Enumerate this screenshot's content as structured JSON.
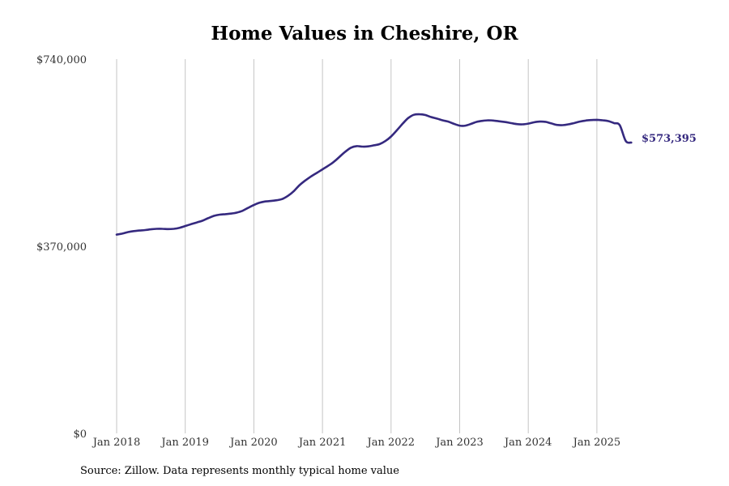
{
  "chart_data": {
    "type": "line",
    "title": "Home Values in Cheshire, OR",
    "xlabel": "",
    "ylabel": "",
    "ylim": [
      0,
      740000
    ],
    "yticks": [
      {
        "value": 0,
        "label": "$0"
      },
      {
        "value": 370000,
        "label": "$370,000"
      },
      {
        "value": 740000,
        "label": "$740,000"
      }
    ],
    "xticks": [
      {
        "value": 2018.0,
        "label": "Jan 2018"
      },
      {
        "value": 2019.0,
        "label": "Jan 2019"
      },
      {
        "value": 2020.0,
        "label": "Jan 2020"
      },
      {
        "value": 2021.0,
        "label": "Jan 2021"
      },
      {
        "value": 2022.0,
        "label": "Jan 2022"
      },
      {
        "value": 2023.0,
        "label": "Jan 2023"
      },
      {
        "value": 2024.0,
        "label": "Jan 2024"
      },
      {
        "value": 2025.0,
        "label": "Jan 2025"
      }
    ],
    "xlim": [
      2017.833,
      2025.917
    ],
    "grid": {
      "vertical": true,
      "horizontal": false
    },
    "line_color": "#35297f",
    "end_label": "$573,395",
    "series": [
      {
        "x": [
          2018.0,
          2018.083,
          2018.167,
          2018.25,
          2018.333,
          2018.417,
          2018.5,
          2018.583,
          2018.667,
          2018.75,
          2018.833,
          2018.917,
          2019.0,
          2019.083,
          2019.167,
          2019.25,
          2019.333,
          2019.417,
          2019.5,
          2019.583,
          2019.667,
          2019.75,
          2019.833,
          2019.917,
          2020.0,
          2020.083,
          2020.167,
          2020.25,
          2020.333,
          2020.417,
          2020.5,
          2020.583,
          2020.667,
          2020.75,
          2020.833,
          2020.917,
          2021.0,
          2021.083,
          2021.167,
          2021.25,
          2021.333,
          2021.417,
          2021.5,
          2021.583,
          2021.667,
          2021.75,
          2021.833,
          2021.917,
          2022.0,
          2022.083,
          2022.167,
          2022.25,
          2022.333,
          2022.417,
          2022.5,
          2022.583,
          2022.667,
          2022.75,
          2022.833,
          2022.917,
          2023.0,
          2023.083,
          2023.167,
          2023.25,
          2023.333,
          2023.417,
          2023.5,
          2023.583,
          2023.667,
          2023.75,
          2023.833,
          2023.917,
          2024.0,
          2024.083,
          2024.167,
          2024.25,
          2024.333,
          2024.417,
          2024.5,
          2024.583,
          2024.667,
          2024.75,
          2024.833,
          2024.917,
          2025.0,
          2025.083,
          2025.167,
          2025.25,
          2025.333,
          2025.417,
          2025.5
        ],
        "y": [
          393000,
          395000,
          398000,
          400000,
          401000,
          402000,
          403500,
          404500,
          404500,
          404000,
          404500,
          406500,
          410000,
          413500,
          417000,
          420500,
          425500,
          430000,
          432500,
          433500,
          434500,
          436500,
          440000,
          446000,
          451500,
          456000,
          458500,
          459500,
          461000,
          463500,
          470000,
          479000,
          491000,
          500000,
          508000,
          515000,
          522000,
          529000,
          537000,
          547000,
          557000,
          565000,
          568000,
          567000,
          567500,
          569500,
          572000,
          578000,
          587000,
          599000,
          612000,
          623500,
          630000,
          631000,
          629500,
          625500,
          622500,
          619000,
          616500,
          612000,
          608500,
          608500,
          612000,
          616000,
          618000,
          619000,
          618500,
          617000,
          615500,
          613500,
          611500,
          611000,
          612500,
          615000,
          616500,
          616000,
          613000,
          610000,
          609500,
          611000,
          613500,
          616500,
          618500,
          619500,
          620000,
          619000,
          617500,
          613500,
          609500,
          573395,
          573395
        ]
      }
    ]
  },
  "footer": {
    "source": "Source: Zillow. Data represents monthly typical home value"
  }
}
